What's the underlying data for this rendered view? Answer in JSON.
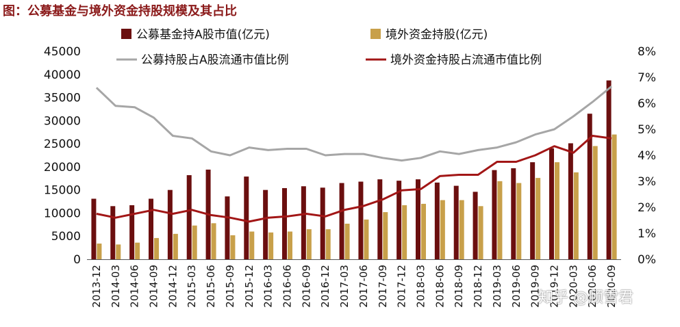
{
  "title": "图：公募基金与境外资金持股规模及其占比",
  "watermark": "知乎 @顾雪君",
  "colors": {
    "fund_bar": "#6b0f0f",
    "foreign_bar": "#c8a04a",
    "fund_ratio_line": "#a6a6a6",
    "foreign_ratio_line": "#a21616"
  },
  "chart_data": {
    "type": "bar+line",
    "categories": [
      "2013-12",
      "2014-03",
      "2014-06",
      "2014-09",
      "2014-12",
      "2015-03",
      "2015-06",
      "2015-09",
      "2015-12",
      "2016-03",
      "2016-06",
      "2016-09",
      "2016-12",
      "2017-03",
      "2017-06",
      "2017-09",
      "2017-12",
      "2018-03",
      "2018-06",
      "2018-09",
      "2018-12",
      "2019-03",
      "2019-06",
      "2019-09",
      "2019-12",
      "2020-03",
      "2020-06",
      "2020-09"
    ],
    "ylim_left": [
      0,
      45000
    ],
    "yticks_left": [
      "0",
      "5000",
      "10000",
      "15000",
      "20000",
      "25000",
      "30000",
      "35000",
      "40000",
      "45000"
    ],
    "ylim_right": [
      0,
      8
    ],
    "yticks_right": [
      "0%",
      "1%",
      "2%",
      "3%",
      "4%",
      "5%",
      "6%",
      "7%",
      "8%"
    ],
    "series": [
      {
        "name": "公募基金持A股市值(亿元)",
        "type": "bar",
        "axis": "left",
        "values": [
          13100,
          11500,
          11700,
          13100,
          15000,
          18200,
          19400,
          13600,
          17900,
          15000,
          15400,
          15800,
          15500,
          16500,
          16800,
          17300,
          17000,
          17300,
          16600,
          15900,
          14600,
          19300,
          19700,
          21000,
          24000,
          25100,
          31500,
          38700
        ]
      },
      {
        "name": "境外资金持股(亿元)",
        "type": "bar",
        "axis": "left",
        "values": [
          3400,
          3200,
          3600,
          4600,
          5500,
          7300,
          7800,
          5200,
          6000,
          5800,
          6000,
          6500,
          6500,
          7700,
          8600,
          10200,
          11700,
          12000,
          12800,
          12800,
          11500,
          16900,
          16500,
          17600,
          21000,
          18800,
          24500,
          27000
        ]
      },
      {
        "name": "公募持股占A股流通市值比例",
        "type": "line",
        "axis": "right",
        "values": [
          6.6,
          5.9,
          5.85,
          5.45,
          4.75,
          4.65,
          4.15,
          4.0,
          4.3,
          4.2,
          4.25,
          4.25,
          4.0,
          4.05,
          4.05,
          3.9,
          3.8,
          3.9,
          4.15,
          4.05,
          4.2,
          4.3,
          4.5,
          4.8,
          5.0,
          5.5,
          6.05,
          6.65
        ]
      },
      {
        "name": "境外资金持股占流通市值比例",
        "type": "line",
        "axis": "right",
        "values": [
          1.75,
          1.6,
          1.75,
          1.9,
          1.75,
          1.9,
          1.7,
          1.6,
          1.45,
          1.6,
          1.65,
          1.75,
          1.65,
          1.9,
          2.05,
          2.3,
          2.65,
          2.7,
          3.2,
          3.25,
          3.25,
          3.75,
          3.75,
          4.0,
          4.35,
          4.1,
          4.75,
          4.65
        ]
      }
    ],
    "legend_position": "top"
  }
}
